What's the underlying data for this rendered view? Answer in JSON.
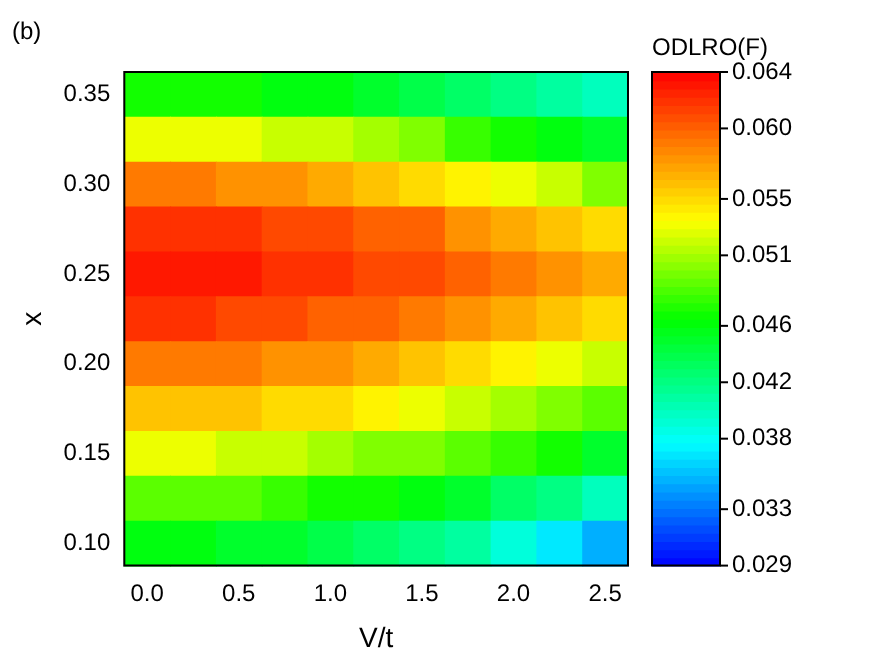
{
  "chart_data": {
    "type": "heatmap",
    "xlabel": "V/t",
    "ylabel": "x",
    "clabel": "ODLRO(F)",
    "annotations": [
      "(b)"
    ],
    "categories": [
      "0.0",
      null,
      "0.5",
      null,
      "1.0",
      null,
      "1.5",
      null,
      "2.0",
      null,
      "2.5"
    ],
    "y_categories": [
      "0.35",
      null,
      "0.30",
      null,
      "0.25",
      null,
      "0.20",
      null,
      "0.15",
      null,
      "0.10"
    ],
    "cells": [
      [
        0.047,
        0.047,
        0.047,
        0.046,
        0.046,
        0.045,
        0.044,
        0.043,
        0.042,
        0.041,
        0.04
      ],
      [
        0.053,
        0.053,
        0.053,
        0.052,
        0.052,
        0.051,
        0.05,
        0.048,
        0.047,
        0.046,
        0.045
      ],
      [
        0.059,
        0.059,
        0.058,
        0.058,
        0.057,
        0.056,
        0.055,
        0.054,
        0.053,
        0.052,
        0.05
      ],
      [
        0.062,
        0.062,
        0.062,
        0.061,
        0.061,
        0.06,
        0.06,
        0.058,
        0.057,
        0.056,
        0.055
      ],
      [
        0.063,
        0.063,
        0.063,
        0.062,
        0.062,
        0.061,
        0.061,
        0.06,
        0.059,
        0.058,
        0.057
      ],
      [
        0.062,
        0.062,
        0.061,
        0.061,
        0.06,
        0.06,
        0.059,
        0.058,
        0.057,
        0.056,
        0.055
      ],
      [
        0.059,
        0.059,
        0.059,
        0.058,
        0.058,
        0.057,
        0.056,
        0.055,
        0.054,
        0.053,
        0.052
      ],
      [
        0.056,
        0.056,
        0.056,
        0.055,
        0.055,
        0.054,
        0.053,
        0.052,
        0.051,
        0.05,
        0.049
      ],
      [
        0.053,
        0.053,
        0.052,
        0.052,
        0.051,
        0.05,
        0.05,
        0.049,
        0.048,
        0.047,
        0.045
      ],
      [
        0.049,
        0.049,
        0.049,
        0.048,
        0.047,
        0.047,
        0.046,
        0.045,
        0.043,
        0.042,
        0.04
      ],
      [
        0.046,
        0.046,
        0.045,
        0.045,
        0.044,
        0.043,
        0.042,
        0.041,
        0.039,
        0.037,
        0.035
      ]
    ],
    "clim": [
      0.029,
      0.064
    ],
    "cticks": [
      0.029,
      0.033,
      0.038,
      0.042,
      0.046,
      0.051,
      0.055,
      {
        "value": 0.06,
        "label": "0.060"
      },
      0.064
    ]
  }
}
